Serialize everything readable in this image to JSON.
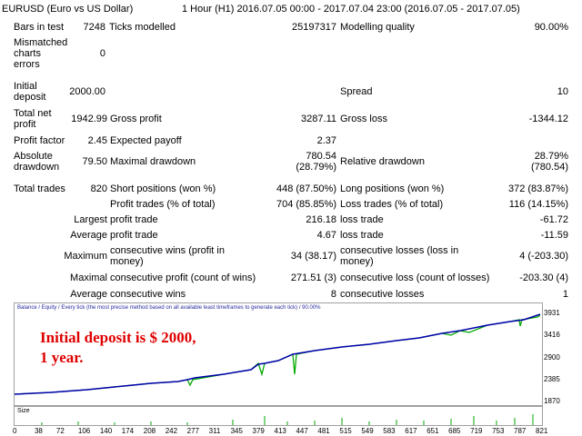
{
  "header": {
    "symbol": "EURUSD (Euro vs US Dollar)",
    "period": "1 Hour (H1) 2016.07.05 00:00 - 2017.07.04 23:00 (2016.07.05 - 2017.07.05)"
  },
  "stats": {
    "bars_label": "Bars in test",
    "bars": "7248",
    "ticks_label": "Ticks modelled",
    "ticks": "25197317",
    "quality_label": "Modelling quality",
    "quality": "90.00%",
    "mismatch_label_1": "Mismatched",
    "mismatch_label_2": "charts",
    "mismatch_label_3": "errors",
    "mismatch": "0",
    "deposit_label_1": "Initial",
    "deposit_label_2": "deposit",
    "deposit": "2000.00",
    "spread_label": "Spread",
    "spread": "10",
    "netprofit_label_1": "Total net",
    "netprofit_label_2": "profit",
    "netprofit": "1942.99",
    "grossprofit_label": "Gross profit",
    "grossprofit": "3287.11",
    "grossloss_label": "Gross loss",
    "grossloss": "-1344.12",
    "pf_label": "Profit factor",
    "pf": "2.45",
    "payoff_label": "Expected payoff",
    "payoff": "2.37",
    "absdd_label_1": "Absolute",
    "absdd_label_2": "drawdown",
    "absdd": "79.50",
    "maxdd_label": "Maximal drawdown",
    "maxdd_1": "780.54",
    "maxdd_2": "(28.79%)",
    "reldd_label": "Relative drawdown",
    "reldd_1": "28.79%",
    "reldd_2": "(780.54)",
    "trades_label": "Total trades",
    "trades": "820",
    "short_label": "Short positions (won %)",
    "short": "448 (87.50%)",
    "long_label": "Long positions (won %)",
    "long": "372 (83.87%)",
    "pt_label": "Profit trades (% of total)",
    "pt": "704 (85.85%)",
    "lt_label": "Loss trades (% of total)",
    "lt": "116 (14.15%)",
    "largest_label": "Largest",
    "lpt_label": "profit trade",
    "lpt": "216.18",
    "llt_label": "loss trade",
    "llt": "-61.72",
    "average_label": "Average",
    "apt_label": "profit trade",
    "apt": "4.67",
    "alt_label": "loss trade",
    "alt": "-11.59",
    "maximum_label": "Maximum",
    "cw_label_1": "consecutive wins (profit in",
    "cw_label_2": "money)",
    "cw": "34 (38.17)",
    "cl_label_1": "consecutive losses (loss in",
    "cl_label_2": "money)",
    "cl": "4 (-203.30)",
    "maximal_label": "Maximal",
    "cp_label": "consecutive profit (count of wins)",
    "cp": "271.51 (3)",
    "closs_label": "consecutive loss (count of losses)",
    "closs": "-203.30 (4)",
    "average2_label": "Average",
    "acw_label": "consecutive wins",
    "acw": "8",
    "acl_label": "consecutive losses",
    "acl": "1"
  },
  "chart": {
    "legend": "Balance / Equity / Every tick (the most precise method based on all available least timeframes to generate each tick) / 90.00%",
    "overlay_1": "Initial deposit is $ 2000,",
    "overlay_2": "1 year.",
    "size_label": "Size",
    "balance_color": "#0000aa",
    "equity_color": "#00aa00",
    "y_ticks": [
      "3931",
      "3416",
      "2900",
      "2385",
      "1870"
    ],
    "x_ticks": [
      "0",
      "38",
      "72",
      "106",
      "140",
      "174",
      "208",
      "242",
      "277",
      "311",
      "345",
      "379",
      "413",
      "447",
      "481",
      "515",
      "549",
      "583",
      "617",
      "651",
      "685",
      "719",
      "753",
      "787",
      "821"
    ]
  }
}
